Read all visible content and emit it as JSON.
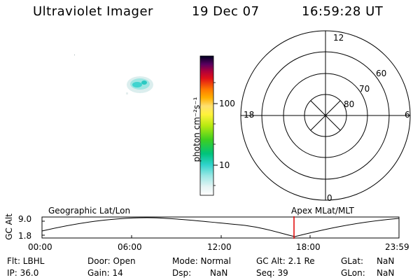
{
  "header": {
    "title": "Ultraviolet Imager",
    "date": "19 Dec 07",
    "time": "16:59:28 UT"
  },
  "colorbar": {
    "unit_label": "photon cm⁻²s⁻¹",
    "tick_100": "100",
    "tick_10": "10"
  },
  "polar_plot": {
    "mlt_top": "12",
    "mlt_left": "18",
    "mlt_right": "6",
    "mlt_bottom": "0",
    "lat_60": "60",
    "lat_70": "70",
    "lat_80": "80"
  },
  "orbit_plot": {
    "axis_label": "GC Alt",
    "y_max": "9.0",
    "y_min": "1.8",
    "left_caption": "Geographic Lat/Lon",
    "right_caption": "Apex MLat/MLT",
    "x_ticks": [
      "00:00",
      "06:00",
      "12:00",
      "18:00",
      "23:59"
    ]
  },
  "status": {
    "flt": "Flt: LBHL",
    "ip": "IP: 36.0",
    "door": "Door: Open",
    "gain": "Gain: 14",
    "mode": "Mode: Normal",
    "dsp_label": "Dsp:",
    "dsp_value": "NaN",
    "gc_alt": "GC Alt: 2.1 Re",
    "seq": "Seq: 39",
    "glat_label": "GLat:",
    "glat_value": "NaN",
    "glon_label": "GLon:",
    "glon_value": "NaN"
  },
  "colors": {
    "marker": "#e00000",
    "blob": "#3fd4cf"
  }
}
